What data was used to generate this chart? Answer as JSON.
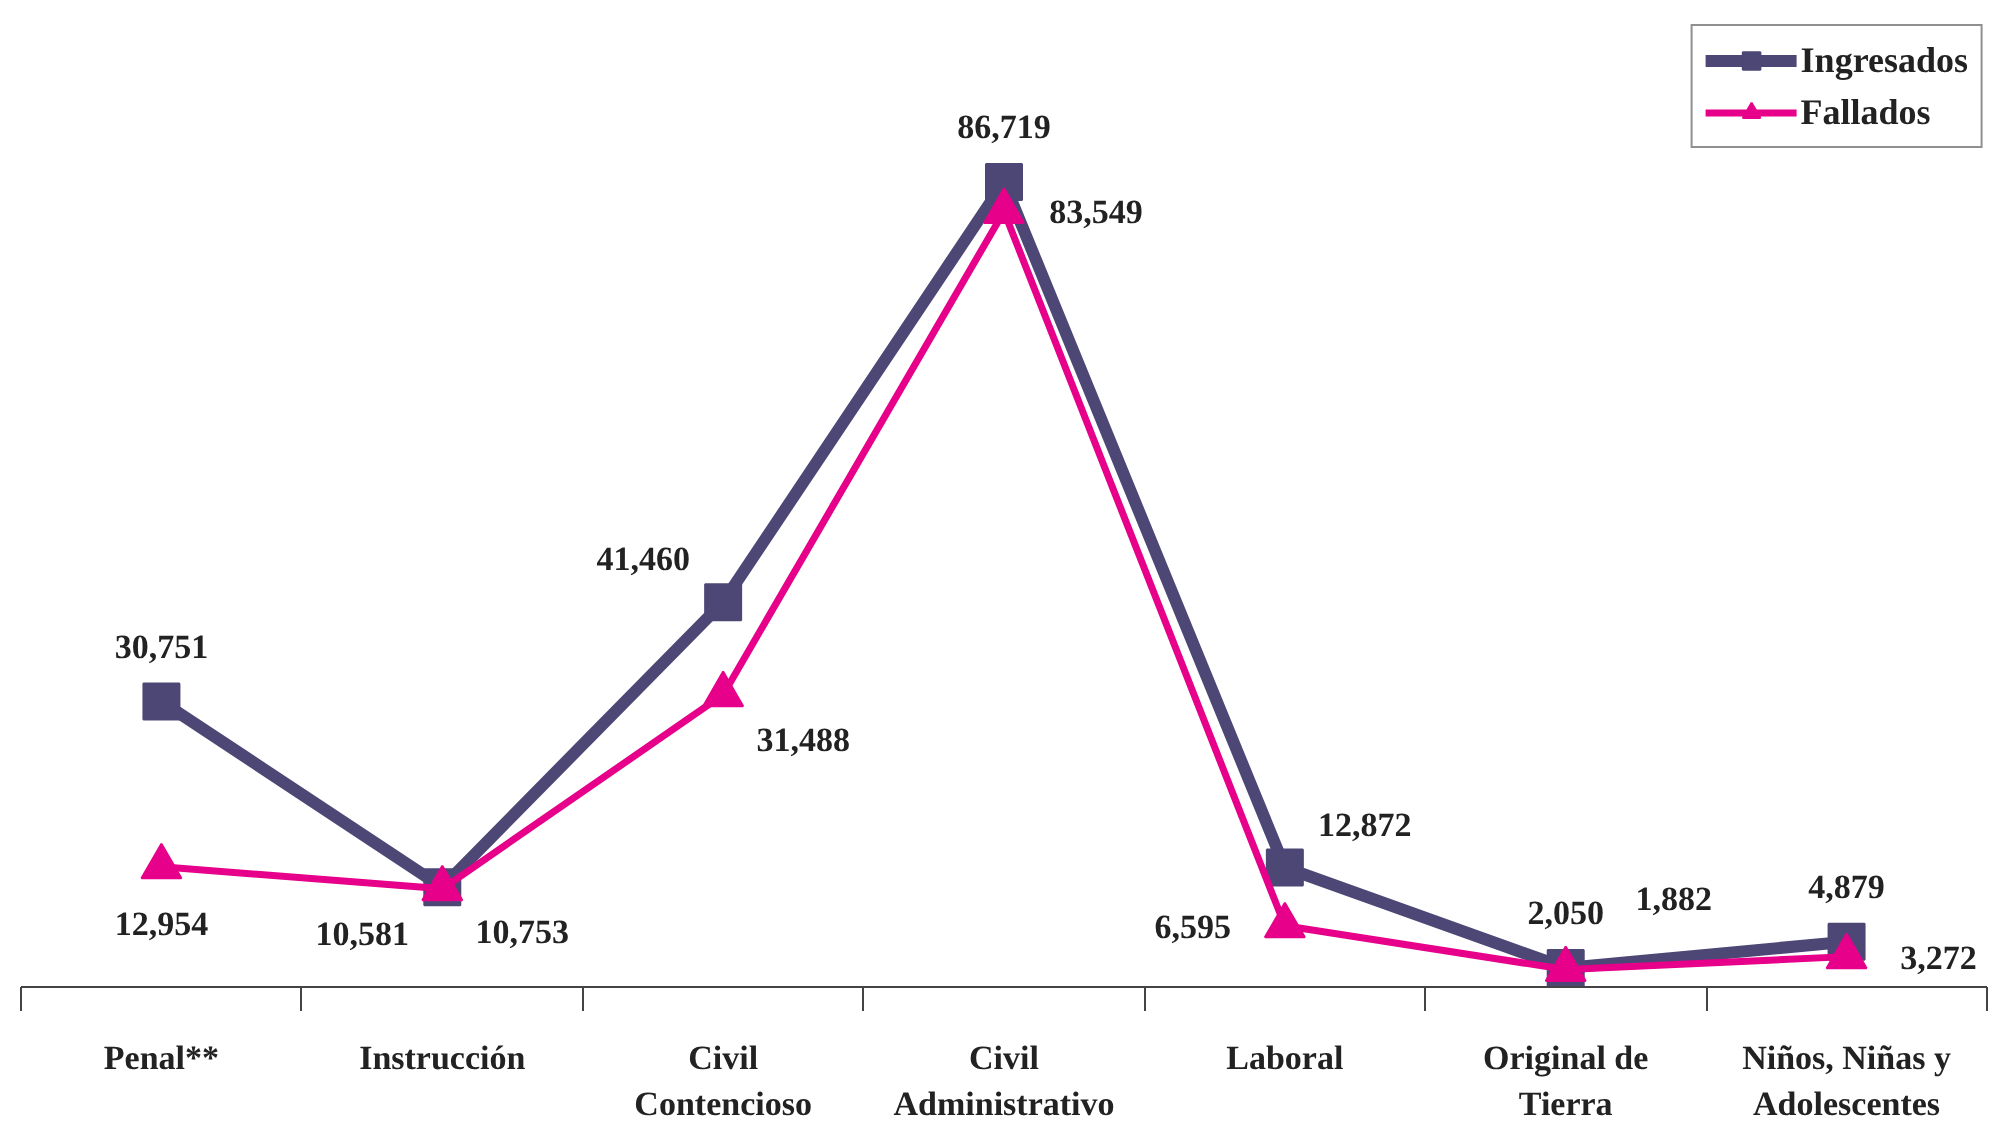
{
  "chart_data": {
    "type": "line",
    "categories": [
      "Penal**",
      "Instrucción",
      "Civil Contencioso",
      "Civil Administrativo",
      "Laboral",
      "Original de Tierra",
      "Niños, Niñas y Adolescentes"
    ],
    "series": [
      {
        "name": "Ingresados",
        "color": "#4d4776",
        "marker": "square",
        "values": [
          30751,
          10753,
          41460,
          86719,
          12872,
          2050,
          4879
        ],
        "value_labels": [
          "30,751",
          "10,753",
          "41,460",
          "86,719",
          "12,872",
          "2,050",
          "4,879"
        ]
      },
      {
        "name": "Fallados",
        "color": "#e6008a",
        "marker": "triangle",
        "values": [
          12954,
          10581,
          31488,
          83549,
          6595,
          1882,
          3272
        ],
        "value_labels": [
          "12,954",
          "10,581",
          "31,488",
          "83,549",
          "6,595",
          "1,882",
          "3,272"
        ]
      }
    ],
    "legend": "top right"
  }
}
